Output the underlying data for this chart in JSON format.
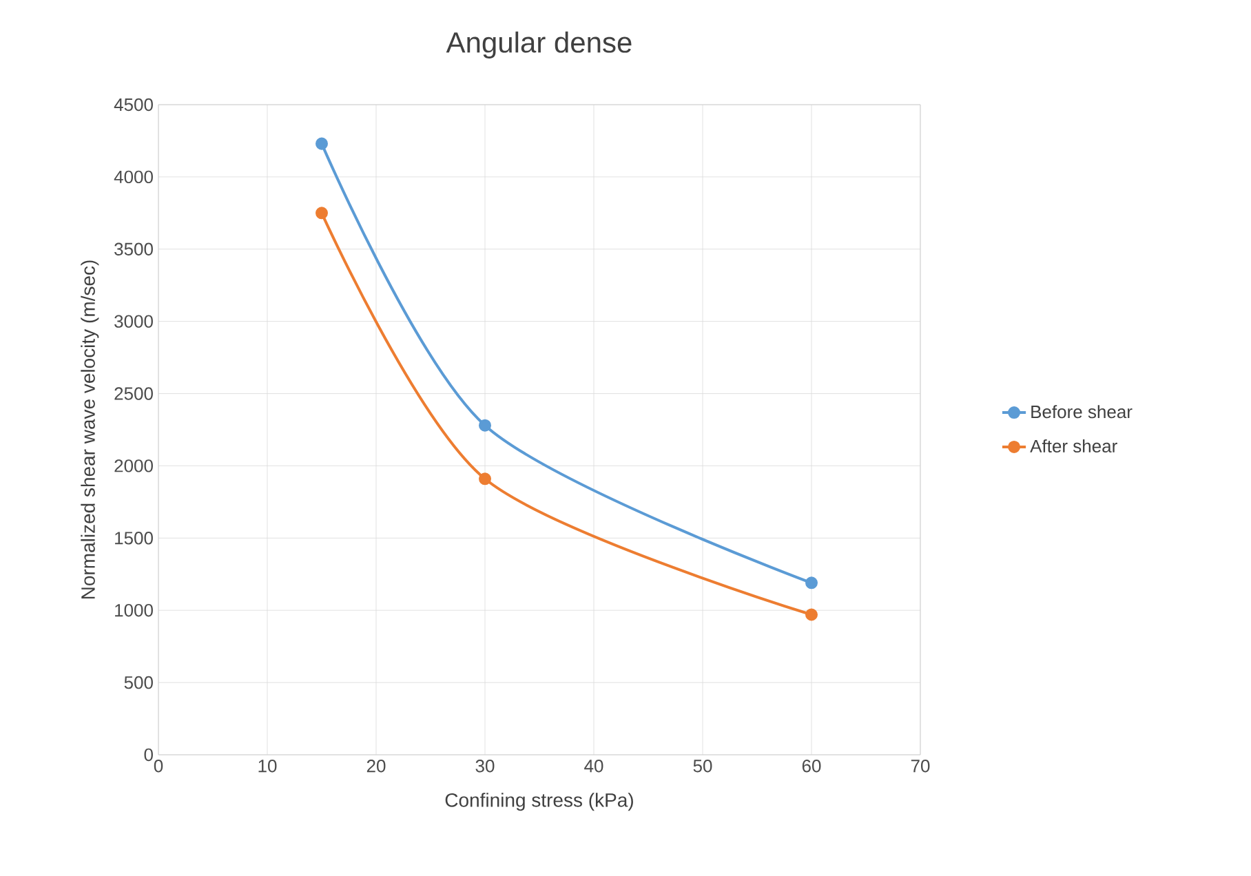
{
  "chart_data": {
    "type": "line",
    "title": "Angular dense",
    "xlabel": "Confining stress (kPa)",
    "ylabel": "Normalized shear wave velocity (m/sec)",
    "x": [
      15,
      30,
      60
    ],
    "series": [
      {
        "name": "Before shear",
        "color": "#5b9bd5",
        "values": [
          4230,
          2280,
          1190
        ]
      },
      {
        "name": "After shear",
        "color": "#ed7d31",
        "values": [
          3750,
          1910,
          970
        ]
      }
    ],
    "xlim": [
      0,
      70
    ],
    "xticks": [
      0,
      10,
      20,
      30,
      40,
      50,
      60,
      70
    ],
    "ylim": [
      0,
      4500
    ],
    "yticks": [
      0,
      500,
      1000,
      1500,
      2000,
      2500,
      3000,
      3500,
      4000,
      4500
    ],
    "grid": true,
    "legend": "right",
    "marker": "circle",
    "line_style": "solid"
  }
}
